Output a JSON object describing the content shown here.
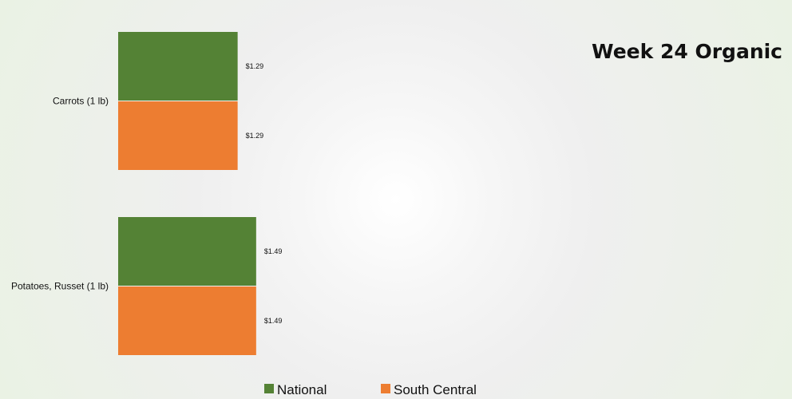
{
  "chart_data": {
    "type": "bar",
    "orientation": "horizontal",
    "title": "Week 24 Organic",
    "categories": [
      "Carrots (1 lb)",
      "Potatoes, Russet (1 lb)"
    ],
    "series": [
      {
        "name": "National",
        "values": [
          1.29,
          1.49
        ],
        "labels": [
          "$1.29",
          "$1.49"
        ],
        "color": "#548235"
      },
      {
        "name": "South Central",
        "values": [
          1.29,
          1.49
        ],
        "labels": [
          "$1.29",
          "$1.49"
        ],
        "color": "#ED7D31"
      }
    ],
    "xlim": [
      0,
      7.5
    ],
    "grid": false,
    "legend_position": "bottom"
  }
}
